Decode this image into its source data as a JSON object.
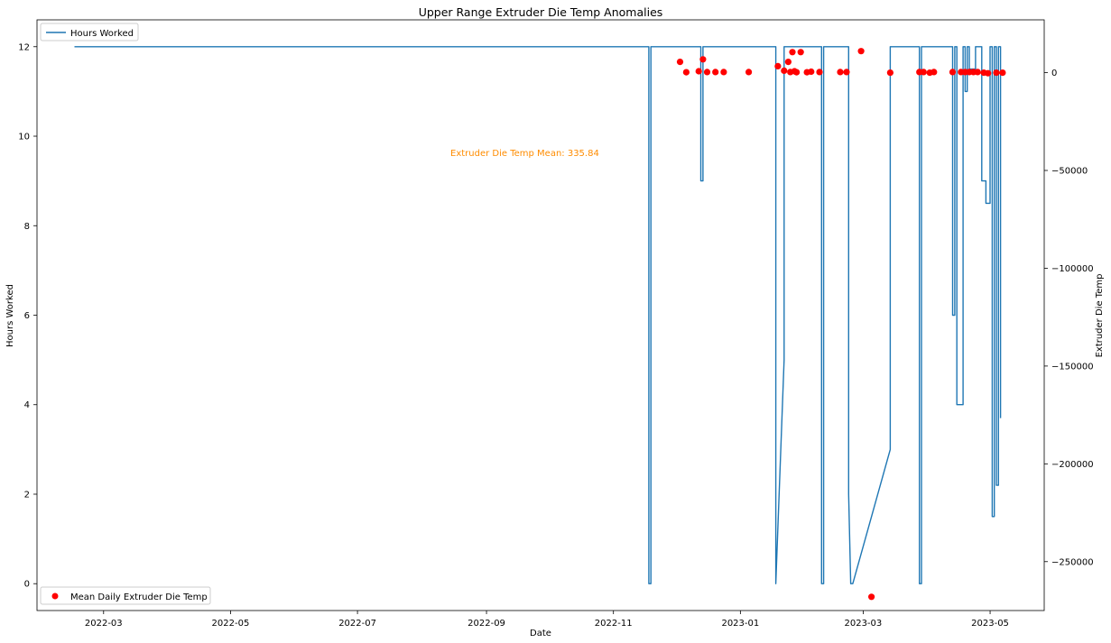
{
  "chart_data": {
    "type": "line",
    "title": "Upper Range Extruder Die Temp Anomalies",
    "xlabel": "Date",
    "ylabel": "Hours Worked",
    "y2label": "Extruder Die Temp",
    "xlim": [
      "2022-01-28",
      "2023-05-27"
    ],
    "ylim": [
      -0.6,
      12.6
    ],
    "y2lim": [
      -275000,
      27000
    ],
    "x_ticks": [
      "2022-03",
      "2022-05",
      "2022-07",
      "2022-09",
      "2022-11",
      "2023-01",
      "2023-03",
      "2023-05"
    ],
    "y_ticks": [
      0,
      2,
      4,
      6,
      8,
      10,
      12
    ],
    "y2_ticks": [
      0,
      -50000,
      -100000,
      -150000,
      -200000,
      -250000
    ],
    "y2_tick_labels": [
      "0",
      "−50000",
      "−100000",
      "−150000",
      "−200000",
      "−250000"
    ],
    "annotation": "Extruder Die Temp Mean: 335.84",
    "grid": false,
    "series": [
      {
        "name": "Hours Worked",
        "axis": "left",
        "color": "#1f77b4",
        "x": [
          "2022-02-15",
          "2022-11-18",
          "2022-11-18",
          "2022-11-19",
          "2022-11-19",
          "2022-12-13",
          "2022-12-13",
          "2022-12-14",
          "2022-12-14",
          "2023-01-18",
          "2023-01-18",
          "2023-01-22",
          "2023-01-22",
          "2023-02-09",
          "2023-02-09",
          "2023-02-10",
          "2023-02-10",
          "2023-02-22",
          "2023-02-22",
          "2023-02-23",
          "2023-02-24",
          "2023-03-14",
          "2023-03-14",
          "2023-03-28",
          "2023-03-28",
          "2023-03-29",
          "2023-03-29",
          "2023-04-13",
          "2023-04-13",
          "2023-04-14",
          "2023-04-14",
          "2023-04-15",
          "2023-04-15",
          "2023-04-18",
          "2023-04-18",
          "2023-04-19",
          "2023-04-19",
          "2023-04-20",
          "2023-04-20",
          "2023-04-21",
          "2023-04-21",
          "2023-04-24",
          "2023-04-24",
          "2023-04-27",
          "2023-04-27",
          "2023-04-29",
          "2023-04-29",
          "2023-05-01",
          "2023-05-01",
          "2023-05-02",
          "2023-05-02",
          "2023-05-03",
          "2023-05-03",
          "2023-05-04",
          "2023-05-04",
          "2023-05-05",
          "2023-05-05",
          "2023-05-06",
          "2023-05-06"
        ],
        "y": [
          12,
          12,
          0,
          0,
          12,
          12,
          9,
          9,
          12,
          12,
          0,
          5,
          12,
          12,
          0,
          0,
          12,
          12,
          2,
          0,
          0,
          3,
          12,
          12,
          0,
          0,
          12,
          12,
          6,
          6,
          12,
          12,
          4,
          4,
          12,
          12,
          11,
          11,
          12,
          12,
          11.5,
          11.5,
          12,
          12,
          9,
          9,
          8.5,
          8.5,
          12,
          12,
          1.5,
          1.5,
          12,
          12,
          2.2,
          2.2,
          12,
          12,
          3.7
        ]
      },
      {
        "name": "Mean Daily Extruder Die Temp",
        "axis": "right",
        "type": "scatter",
        "color": "#ff0000",
        "x": [
          "2022-12-03",
          "2022-12-06",
          "2022-12-12",
          "2022-12-14",
          "2022-12-16",
          "2022-12-20",
          "2022-12-24",
          "2023-01-05",
          "2023-01-19",
          "2023-01-22",
          "2023-01-24",
          "2023-01-25",
          "2023-01-26",
          "2023-01-27",
          "2023-01-28",
          "2023-01-30",
          "2023-02-02",
          "2023-02-04",
          "2023-02-08",
          "2023-02-18",
          "2023-02-21",
          "2023-02-28",
          "2023-03-05",
          "2023-03-14",
          "2023-03-28",
          "2023-03-30",
          "2023-04-02",
          "2023-04-04",
          "2023-04-13",
          "2023-04-17",
          "2023-04-19",
          "2023-04-21",
          "2023-04-23",
          "2023-04-25",
          "2023-04-28",
          "2023-04-30",
          "2023-05-04",
          "2023-05-07"
        ],
        "y": [
          5500,
          200,
          700,
          6800,
          300,
          300,
          300,
          300,
          3300,
          1000,
          5500,
          300,
          10500,
          700,
          200,
          10500,
          200,
          500,
          300,
          300,
          300,
          11000,
          -268000,
          0,
          300,
          300,
          0,
          300,
          300,
          300,
          300,
          300,
          300,
          300,
          0,
          -300,
          0,
          0
        ]
      }
    ]
  }
}
